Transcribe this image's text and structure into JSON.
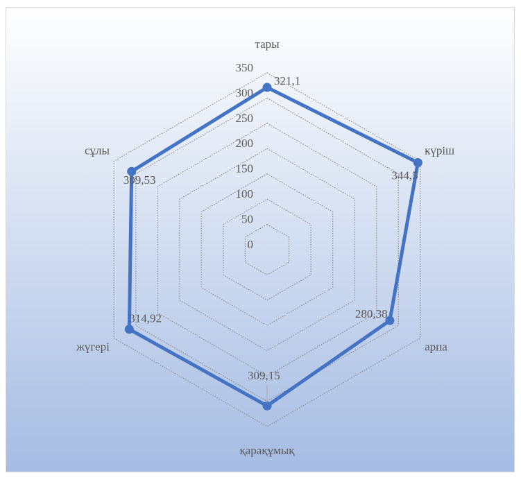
{
  "chart_data": {
    "type": "radar",
    "categories": [
      "тары",
      "күріш",
      "арпа",
      "қарақұмық",
      "жүгері",
      "сұлы"
    ],
    "values": [
      321.1,
      344.5,
      280.38,
      309.15,
      314.92,
      309.53
    ],
    "value_labels": [
      "321,1",
      "344,5",
      "280,38",
      "309,15",
      "314,92",
      "309,53"
    ],
    "color": "#4472c4",
    "ylim": [
      0,
      350
    ],
    "yticks": [
      0,
      50,
      100,
      150,
      200,
      250,
      300,
      350
    ],
    "grid": true
  }
}
